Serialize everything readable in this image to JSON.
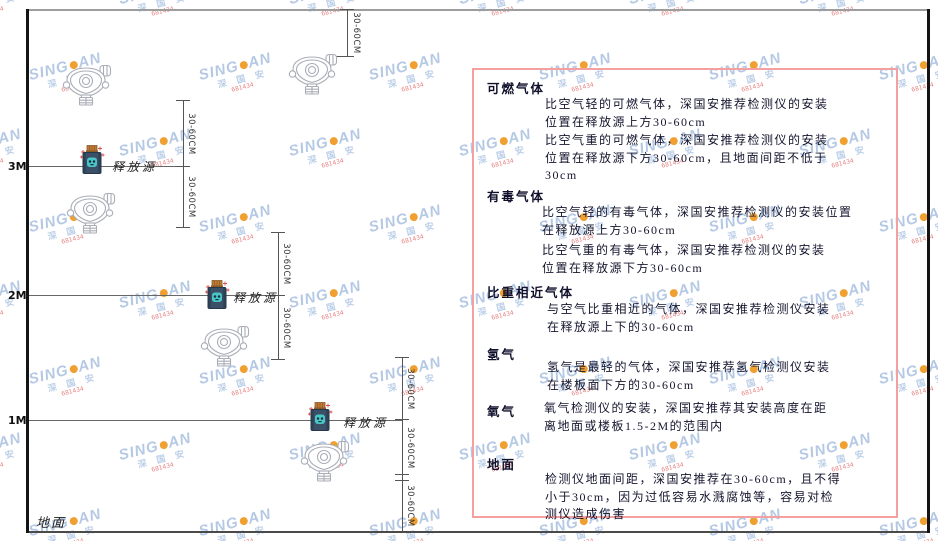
{
  "diagram": {
    "height_labels": {
      "h3": "3M",
      "h2": "2M",
      "h1": "1M"
    },
    "ground_label": "地面",
    "release_source_label": "释放源",
    "dimension_label": "30-60CM"
  },
  "panel": {
    "sections": [
      {
        "heading": "可燃气体",
        "p1": "比空气轻的可燃气体，深国安推荐检测仪的安装\n位置在释放源上方30-60cm",
        "p2": "比空气重的可燃气体，深国安推荐检测仪的安装\n位置在释放源下方30-60cm，且地面间距不低于\n30cm"
      },
      {
        "heading": "有毒气体",
        "p1": "比空气轻的有毒气体，深国安推荐检测仪的安装位置\n在释放源上方30-60cm",
        "p2": "比空气重的有毒气体，深国安推荐检测仪的安装\n位置在释放源下方30-60cm"
      },
      {
        "heading": "比重相近气体",
        "p1": "与空气比重相近的气体，深国安推荐检测仪安装\n在释放源上下的30-60cm"
      },
      {
        "heading": "氢气",
        "p1": "氢气是最轻的气体，深国安推荐氢气检测仪安装\n在楼板面下方的30-60cm"
      },
      {
        "heading": "氧气",
        "p1": "氧气检测仪的安装，深国安推荐其安装高度在距\n离地面或楼板1.5-2M的范围内"
      },
      {
        "heading": "地面",
        "p1": "检测仪地面间距，深国安推荐在30-60cm，且不得\n小于30cm，因为过低容易水溅腐蚀等，容易对检\n测仪造成伤害"
      }
    ]
  },
  "watermark": {
    "brand_left": "SING",
    "brand_right": "AN",
    "cn": "深 国 安",
    "code": "681434"
  },
  "colors": {
    "panel_border": "#f5a0a0",
    "watermark_blue": "#b5c9e4",
    "watermark_orange": "#f0a030",
    "source_body": "#3b5066",
    "source_cap": "#c07a36",
    "source_emblem": "#49c7c7",
    "detector_outline": "#a9adb6"
  }
}
